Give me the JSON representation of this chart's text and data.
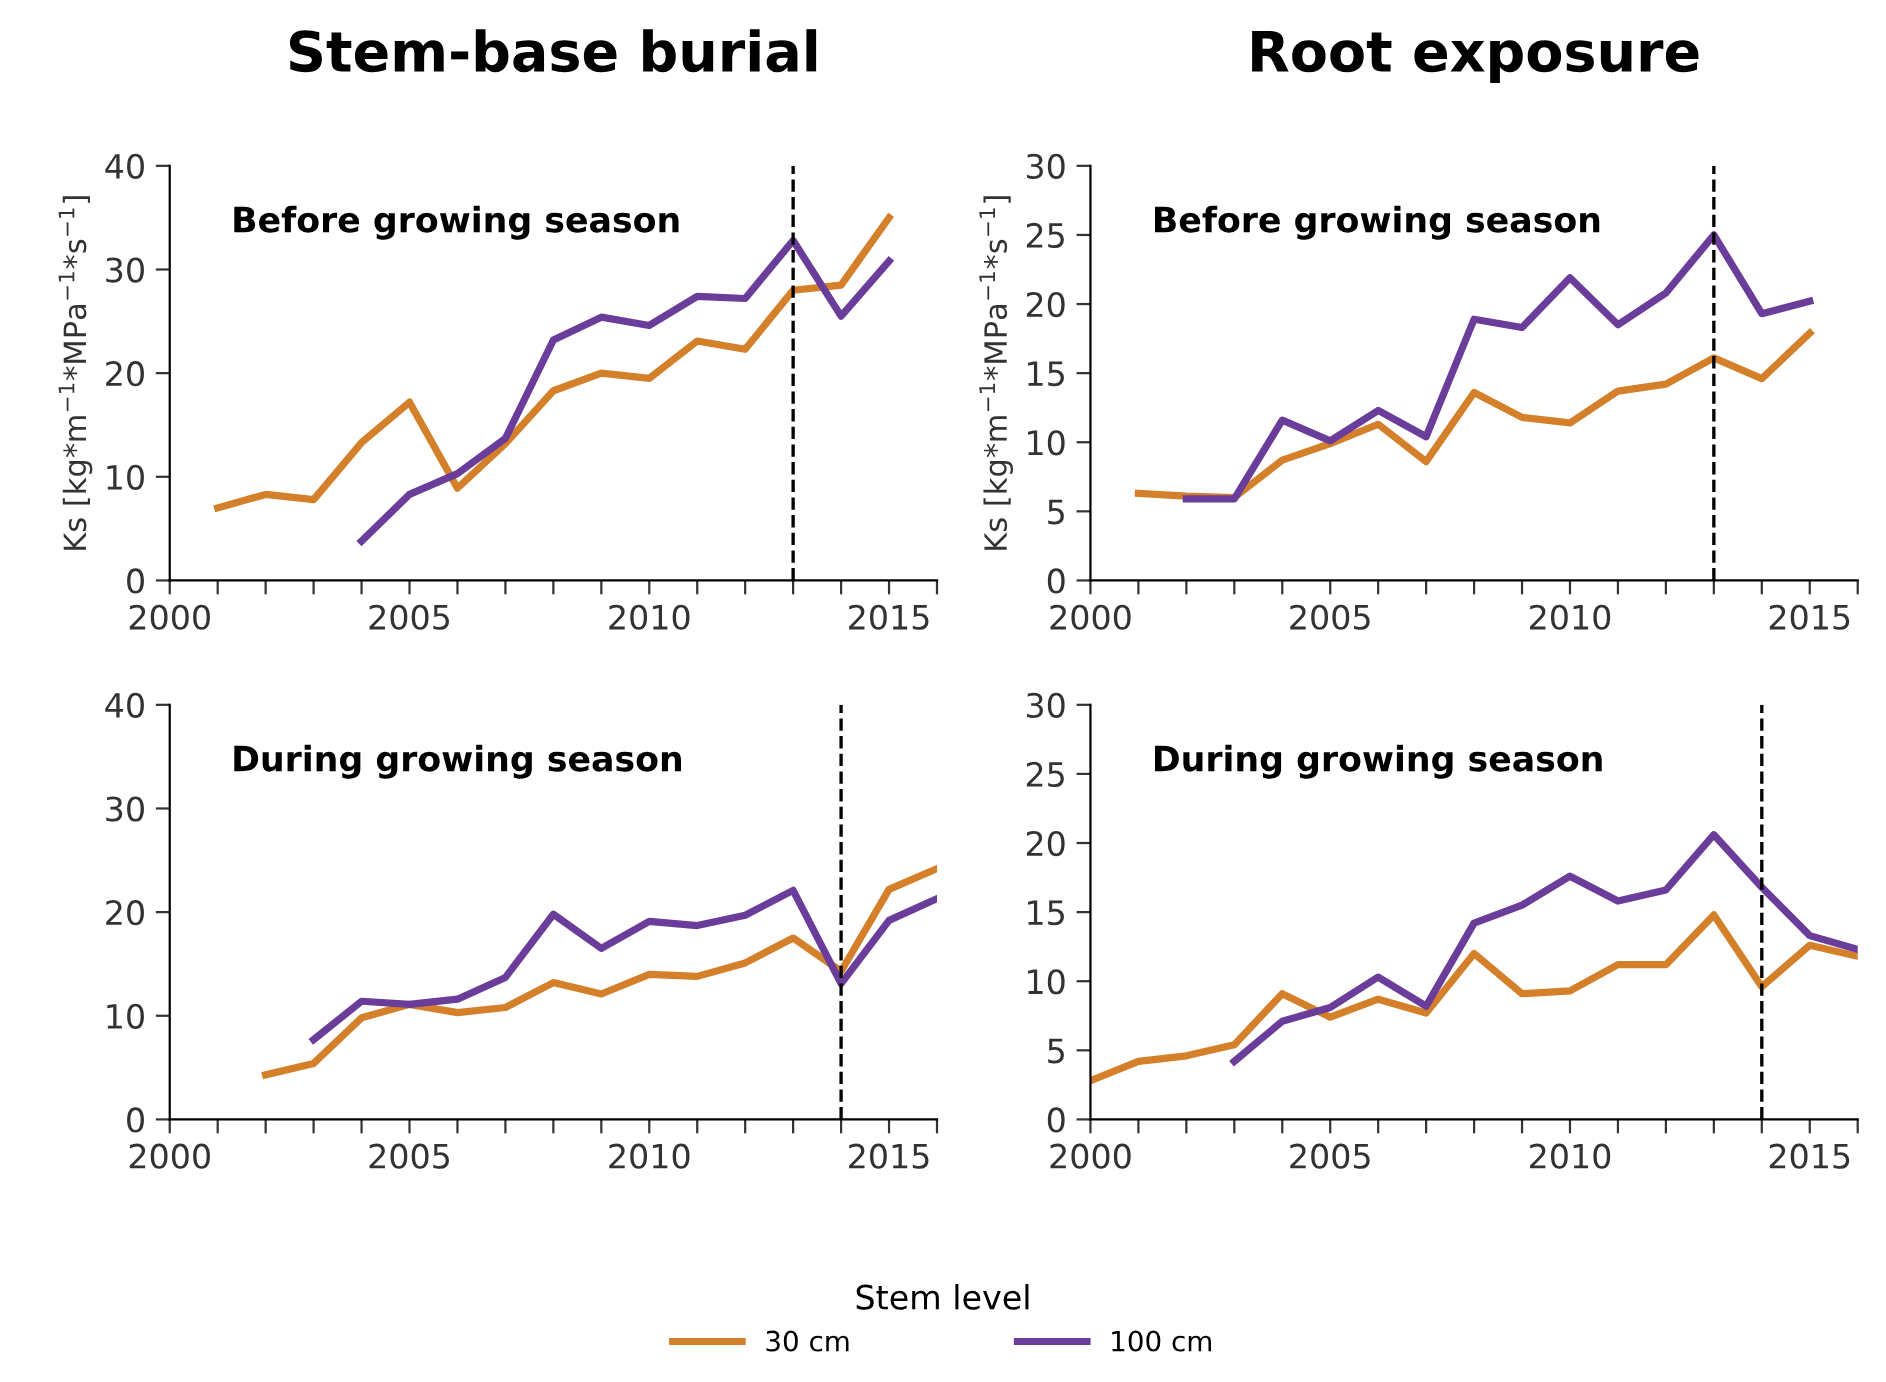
{
  "chart_data": [
    {
      "type": "line",
      "title": "Stem-base burial",
      "ylabel": "Ks [kg*m$^{−1}$*MPa$^{−1}$*s$^{−1}$]",
      "annotations": [
        "Before growing season"
      ],
      "legend_title": "Stem level",
      "legend": "bottom",
      "series": [
        {
          "name": "30 cm",
          "color": "#d4802a",
          "x": [
            2001,
            2002,
            2003,
            2004,
            2005,
            2006,
            2007,
            2008,
            2009,
            2010,
            2011,
            2012,
            2013,
            2014,
            2015
          ],
          "values": [
            7,
            8.3,
            7.8,
            13.3,
            17.2,
            8.9,
            13.2,
            18.3,
            20,
            19.5,
            23.1,
            22.3,
            28,
            28.5,
            35
          ]
        },
        {
          "name": "100 cm",
          "color": "#6a3d9a",
          "x": [
            2004,
            2005,
            2006,
            2007,
            2008,
            2009,
            2010,
            2011,
            2012,
            2013,
            2014,
            2015
          ],
          "values": [
            3.8,
            8.3,
            10.3,
            13.7,
            23.2,
            25.4,
            24.6,
            27.4,
            27.2,
            32.8,
            25.5,
            30.8
          ]
        }
      ],
      "xlim": [
        2000,
        2016
      ],
      "xticks": [
        2000,
        {
          "value": 2001,
          "label": null
        },
        {
          "value": 2002,
          "label": null
        },
        {
          "value": 2003,
          "label": null
        },
        {
          "value": 2004,
          "label": null
        },
        2005,
        {
          "value": 2006,
          "label": null
        },
        {
          "value": 2007,
          "label": null
        },
        {
          "value": 2008,
          "label": null
        },
        {
          "value": 2009,
          "label": null
        },
        2010,
        {
          "value": 2011,
          "label": null
        },
        {
          "value": 2012,
          "label": null
        },
        {
          "value": 2013,
          "label": null
        },
        {
          "value": 2014,
          "label": null
        },
        2015,
        {
          "value": 2016,
          "label": null
        }
      ],
      "ylim": [
        0,
        40
      ],
      "yticks": [
        0,
        10,
        20,
        30,
        40
      ],
      "ref_lines": [
        {
          "axis": "x",
          "value": 2013,
          "label": null,
          "color": "#000000",
          "line_style": "dashed"
        }
      ],
      "grid": false
    },
    {
      "type": "line",
      "title": "Root exposure",
      "ylabel": "Ks [kg*m$^{−1}$*MPa$^{−1}$*s$^{−1}$]",
      "annotations": [
        "Before growing season"
      ],
      "series": [
        {
          "color": "#d4802a",
          "x": [
            2001,
            2002,
            2003,
            2004,
            2005,
            2006,
            2007,
            2008,
            2009,
            2010,
            2011,
            2012,
            2013,
            2014,
            2015
          ],
          "values": [
            6.3,
            6.1,
            6.0,
            8.7,
            9.9,
            11.3,
            8.6,
            13.6,
            11.8,
            11.4,
            13.7,
            14.2,
            16.1,
            14.6,
            17.9
          ]
        },
        {
          "color": "#6a3d9a",
          "x": [
            2002,
            2003,
            2004,
            2005,
            2006,
            2007,
            2008,
            2009,
            2010,
            2011,
            2012,
            2013,
            2014,
            2015
          ],
          "values": [
            5.9,
            5.9,
            11.6,
            10.1,
            12.3,
            10.4,
            18.9,
            18.3,
            21.9,
            18.5,
            20.8,
            25,
            19.3,
            20.2
          ]
        }
      ],
      "xlim": [
        2000,
        2016
      ],
      "xticks": [
        2000,
        {
          "value": 2001,
          "label": null
        },
        {
          "value": 2002,
          "label": null
        },
        {
          "value": 2003,
          "label": null
        },
        {
          "value": 2004,
          "label": null
        },
        2005,
        {
          "value": 2006,
          "label": null
        },
        {
          "value": 2007,
          "label": null
        },
        {
          "value": 2008,
          "label": null
        },
        {
          "value": 2009,
          "label": null
        },
        2010,
        {
          "value": 2011,
          "label": null
        },
        {
          "value": 2012,
          "label": null
        },
        {
          "value": 2013,
          "label": null
        },
        {
          "value": 2014,
          "label": null
        },
        2015,
        {
          "value": 2016,
          "label": null
        }
      ],
      "ylim": [
        0,
        30
      ],
      "yticks": [
        0,
        5,
        10,
        15,
        20,
        25,
        30
      ],
      "ref_lines": [
        {
          "axis": "x",
          "value": 2013,
          "label": null,
          "color": "#000000",
          "line_style": "dashed"
        }
      ],
      "grid": false
    },
    {
      "type": "line",
      "annotations": [
        "During growing season"
      ],
      "series": [
        {
          "color": "#d4802a",
          "x": [
            2002,
            2003,
            2004,
            2005,
            2006,
            2007,
            2008,
            2009,
            2010,
            2011,
            2012,
            2013,
            2014,
            2015,
            2016
          ],
          "values": [
            4.3,
            5.4,
            9.8,
            11.1,
            10.3,
            10.8,
            13.2,
            12.1,
            14,
            13.8,
            15.1,
            17.5,
            14.3,
            22.2,
            24.2
          ]
        },
        {
          "color": "#6a3d9a",
          "x": [
            2003,
            2004,
            2005,
            2006,
            2007,
            2008,
            2009,
            2010,
            2011,
            2012,
            2013,
            2014,
            2015,
            2016
          ],
          "values": [
            7.7,
            11.4,
            11.1,
            11.6,
            13.7,
            19.8,
            16.5,
            19.1,
            18.7,
            19.7,
            22.1,
            13.1,
            19.2,
            21.3
          ]
        }
      ],
      "xlim": [
        2000,
        2016
      ],
      "xticks": [
        2000,
        {
          "value": 2001,
          "label": null
        },
        {
          "value": 2002,
          "label": null
        },
        {
          "value": 2003,
          "label": null
        },
        {
          "value": 2004,
          "label": null
        },
        2005,
        {
          "value": 2006,
          "label": null
        },
        {
          "value": 2007,
          "label": null
        },
        {
          "value": 2008,
          "label": null
        },
        {
          "value": 2009,
          "label": null
        },
        2010,
        {
          "value": 2011,
          "label": null
        },
        {
          "value": 2012,
          "label": null
        },
        {
          "value": 2013,
          "label": null
        },
        {
          "value": 2014,
          "label": null
        },
        2015,
        {
          "value": 2016,
          "label": null
        }
      ],
      "ylim": [
        0,
        40
      ],
      "yticks": [
        0,
        10,
        20,
        30,
        40
      ],
      "ref_lines": [
        {
          "axis": "x",
          "value": 2014,
          "label": null,
          "color": "#000000",
          "line_style": "dashed"
        }
      ],
      "grid": false
    },
    {
      "type": "line",
      "annotations": [
        "During growing season"
      ],
      "series": [
        {
          "color": "#d4802a",
          "x": [
            2000,
            2001,
            2002,
            2003,
            2004,
            2005,
            2006,
            2007,
            2008,
            2009,
            2010,
            2011,
            2012,
            2013,
            2014,
            2015,
            2016
          ],
          "values": [
            2.8,
            4.2,
            4.6,
            5.4,
            9.1,
            7.4,
            8.7,
            7.7,
            12,
            9.1,
            9.3,
            11.2,
            11.2,
            14.8,
            9.6,
            12.6,
            11.8
          ]
        },
        {
          "color": "#6a3d9a",
          "x": [
            2003,
            2004,
            2005,
            2006,
            2007,
            2008,
            2009,
            2010,
            2011,
            2012,
            2013,
            2014,
            2015,
            2016
          ],
          "values": [
            4.2,
            7.1,
            8.1,
            10.3,
            8.2,
            14.2,
            15.5,
            17.6,
            15.8,
            16.6,
            20.6,
            16.8,
            13.3,
            12.3
          ]
        }
      ],
      "xlim": [
        2000,
        2016
      ],
      "xticks": [
        2000,
        {
          "value": 2001,
          "label": null
        },
        {
          "value": 2002,
          "label": null
        },
        {
          "value": 2003,
          "label": null
        },
        {
          "value": 2004,
          "label": null
        },
        2005,
        {
          "value": 2006,
          "label": null
        },
        {
          "value": 2007,
          "label": null
        },
        {
          "value": 2008,
          "label": null
        },
        {
          "value": 2009,
          "label": null
        },
        2010,
        {
          "value": 2011,
          "label": null
        },
        {
          "value": 2012,
          "label": null
        },
        {
          "value": 2013,
          "label": null
        },
        {
          "value": 2014,
          "label": null
        },
        2015,
        {
          "value": 2016,
          "label": null
        }
      ],
      "ylim": [
        0,
        30
      ],
      "yticks": [
        0,
        5,
        10,
        15,
        20,
        25,
        30
      ],
      "ref_lines": [
        {
          "axis": "x",
          "value": 2014,
          "label": null,
          "color": "#000000",
          "line_style": "dashed"
        }
      ],
      "grid": false
    }
  ]
}
